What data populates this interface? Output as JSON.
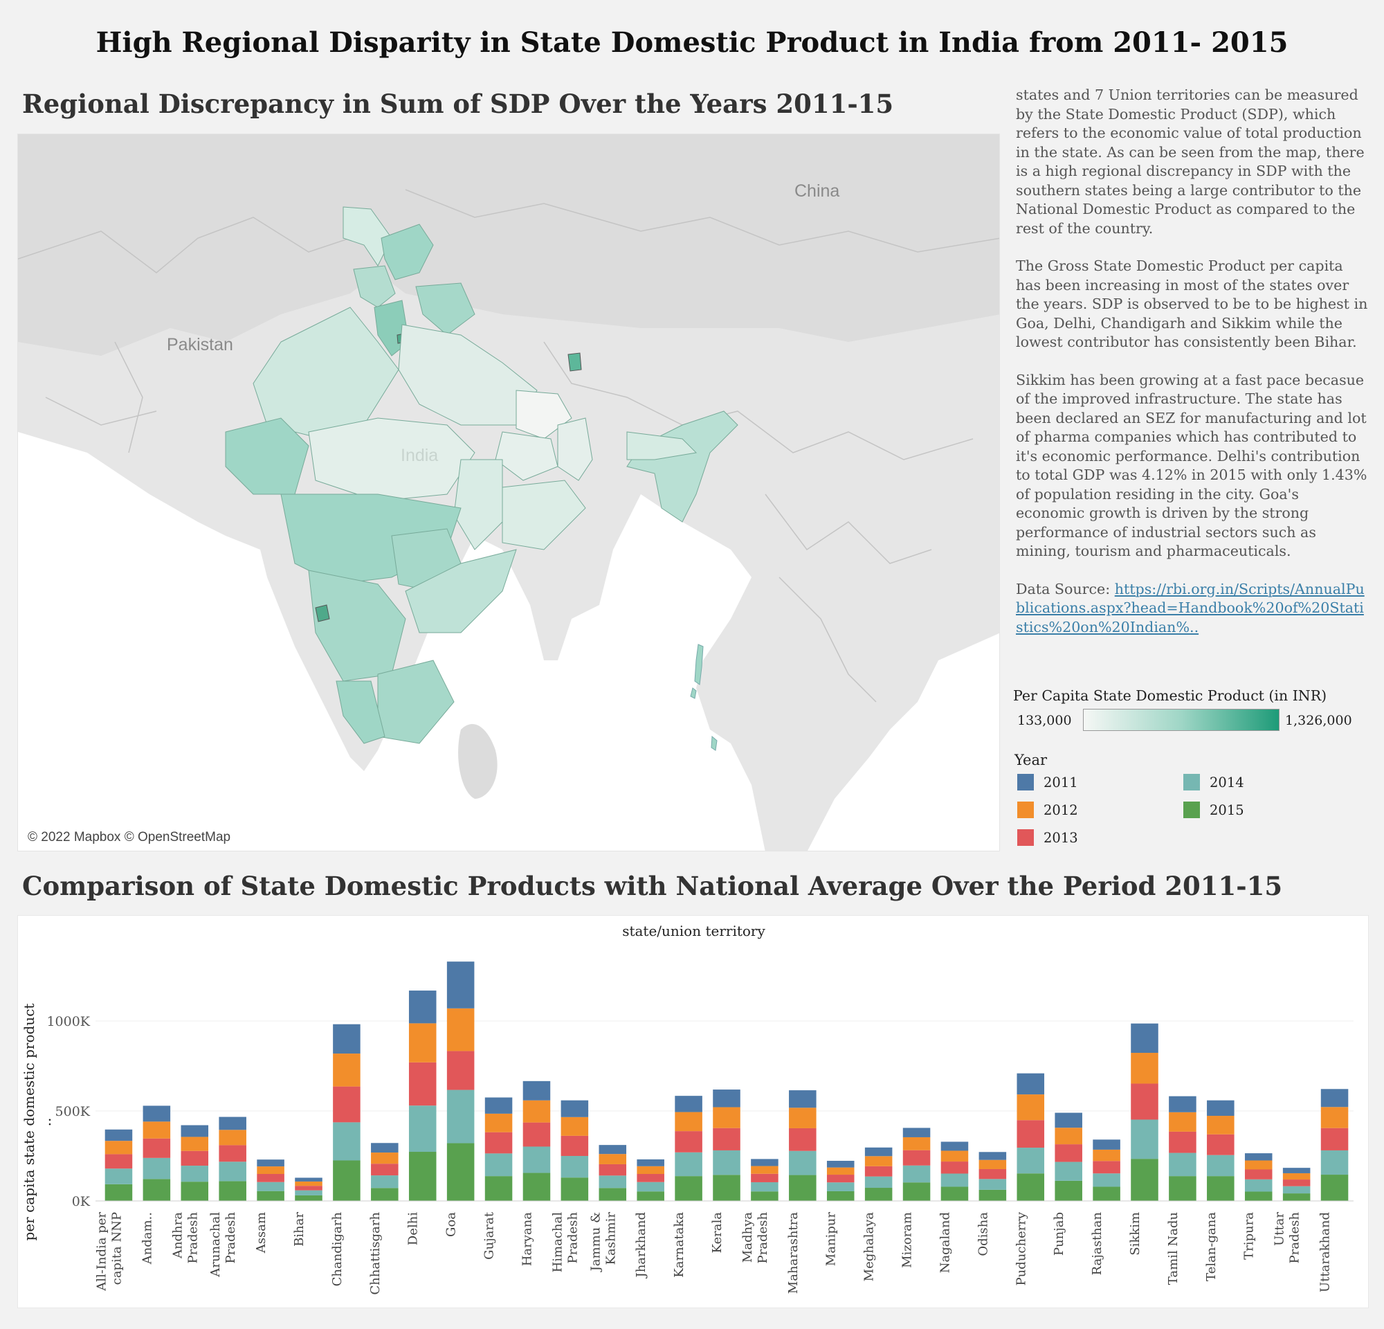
{
  "dashboard_title": "High Regional Disparity in State Domestic Product in India from 2011- 2015",
  "map": {
    "title": "Regional Discrepancy in Sum of SDP Over the Years 2011-15",
    "labels": {
      "china": "China",
      "pakistan": "Pakistan",
      "india": "India"
    },
    "attribution": "© 2022 Mapbox © OpenStreetMap"
  },
  "description": {
    "p1": "states and 7 Union territories can be measured by the State Domestic Product (SDP), which refers to the economic value of total production in the state. As can be seen from the map, there is a high regional discrepancy in SDP with the southern states being a large contributor to the National Domestic Product as compared to the rest of the country.",
    "p2": "The Gross State Domestic Product per capita has been increasing in most of the states over the years. SDP is observed to be to be highest in Goa, Delhi, Chandigarh and Sikkim while the lowest contributor has consistently been Bihar.",
    "p3": "Sikkim has been growing at a fast pace becasue of the improved infrastructure. The state has been declared an SEZ for manufacturing and lot of pharma companies which has contributed to it's economic performance. Delhi's contribution to total GDP was 4.12% in 2015 with only 1.43% of population residing in the city. Goa's economic growth is driven by the strong performance of industrial sectors such as mining, tourism and pharmaceuticals.",
    "source_prefix": "Data Source: ",
    "source_link": "https://rbi.org.in/Scripts/AnnualPublications.aspx?head=Handbook%20of%20Statistics%20on%20Indian%.."
  },
  "legend": {
    "color_title": "Per Capita State Domestic Product (in INR)",
    "min": "133,000",
    "max": "1,326,000",
    "ramp_colors": [
      "#f5f7f5",
      "#9fd6c6",
      "#1e9b78"
    ],
    "year_title": "Year",
    "years": [
      {
        "label": "2011",
        "color": "#4e79a7"
      },
      {
        "label": "2012",
        "color": "#f28e2b"
      },
      {
        "label": "2013",
        "color": "#e15759"
      },
      {
        "label": "2014",
        "color": "#76b7b2"
      },
      {
        "label": "2015",
        "color": "#59a14f"
      }
    ]
  },
  "bar_chart": {
    "title": "Comparison of State Domestic Products with National Average Over the Period 2011-15",
    "x_header": "state/union territory",
    "y_label": "per capita state domestic product .."
  },
  "chart_data": {
    "type": "bar",
    "stacked": true,
    "x_header": "state/union territory",
    "ylabel": "per capita state domestic product ..",
    "ylim": [
      0,
      1400000
    ],
    "yticks": [
      0,
      500000,
      1000000
    ],
    "ytick_labels": [
      "0K",
      "500K",
      "1000K"
    ],
    "categories": [
      "All-India per capita NNP",
      "Andam..",
      "Andhra Pradesh",
      "Arunachal Pradesh",
      "Assam",
      "Bihar",
      "Chandigarh",
      "Chhattisgarh",
      "Delhi",
      "Goa",
      "Gujarat",
      "Haryana",
      "Himachal Pradesh",
      "Jammu & Kashmir",
      "Jharkhand",
      "Karnataka",
      "Kerala",
      "Madhya Pradesh",
      "Maharashtra",
      "Manipur",
      "Meghalaya",
      "Mizoram",
      "Nagaland",
      "Odisha",
      "Puducherry",
      "Punjab",
      "Rajasthan",
      "Sikkim",
      "Tamil Nadu",
      "Telan-gana",
      "Tripura",
      "Uttar Pradesh",
      "Uttarakhand"
    ],
    "series": [
      {
        "name": "2015",
        "color": "#59a14f",
        "values": [
          93000,
          122000,
          107000,
          110000,
          55000,
          31000,
          225000,
          72000,
          273000,
          321000,
          138000,
          156000,
          130000,
          72000,
          53000,
          138000,
          145000,
          53000,
          144000,
          54000,
          73000,
          103000,
          79000,
          62000,
          153000,
          112000,
          79000,
          234000,
          138000,
          138000,
          52000,
          42000,
          146000
        ]
      },
      {
        "name": "2014",
        "color": "#76b7b2",
        "values": [
          87000,
          117000,
          89000,
          108000,
          50000,
          28000,
          212000,
          70000,
          257000,
          296000,
          126000,
          146000,
          120000,
          69000,
          52000,
          132000,
          136000,
          51000,
          134000,
          49000,
          63000,
          94000,
          73000,
          60000,
          143000,
          105000,
          74000,
          218000,
          129000,
          117000,
          68000,
          40000,
          135000
        ]
      },
      {
        "name": "2013",
        "color": "#e15759",
        "values": [
          80000,
          108000,
          82000,
          92000,
          45000,
          25000,
          199000,
          65000,
          240000,
          216000,
          118000,
          134000,
          112000,
          63000,
          45000,
          118000,
          124000,
          47000,
          126000,
          43000,
          57000,
          85000,
          67000,
          55000,
          153000,
          98000,
          69000,
          200000,
          118000,
          115000,
          55000,
          37000,
          124000
        ]
      },
      {
        "name": "2012",
        "color": "#f28e2b",
        "values": [
          74000,
          94000,
          78000,
          85000,
          42000,
          24000,
          183000,
          62000,
          217000,
          237000,
          103000,
          123000,
          104000,
          57000,
          43000,
          106000,
          116000,
          43000,
          114000,
          40000,
          56000,
          72000,
          60000,
          51000,
          143000,
          92000,
          63000,
          171000,
          108000,
          103000,
          50000,
          35000,
          117000
        ]
      },
      {
        "name": "2011",
        "color": "#4e79a7",
        "values": [
          63000,
          88000,
          65000,
          72000,
          38000,
          21000,
          163000,
          53000,
          182000,
          260000,
          90000,
          107000,
          93000,
          50000,
          38000,
          90000,
          98000,
          39000,
          97000,
          37000,
          48000,
          52000,
          50000,
          44000,
          117000,
          83000,
          56000,
          163000,
          89000,
          86000,
          40000,
          30000,
          100000
        ]
      }
    ]
  }
}
